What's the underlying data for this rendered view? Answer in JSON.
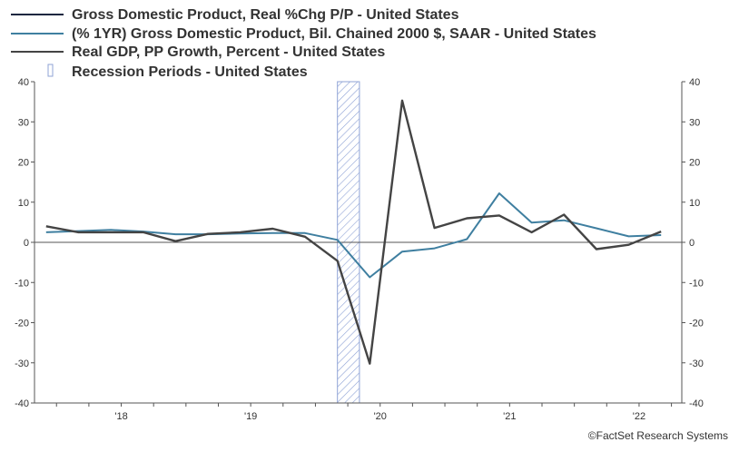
{
  "chart_data": {
    "type": "line",
    "title": "",
    "xlabel": "",
    "ylabel": "",
    "ylim": [
      -40,
      40
    ],
    "y_ticks": [
      "40",
      "30",
      "20",
      "10",
      "0",
      "-10",
      "-20",
      "-30",
      "-40"
    ],
    "y_tick_values": [
      40,
      30,
      20,
      10,
      0,
      -10,
      -20,
      -30,
      -40
    ],
    "x_tick_labels": [
      "'18",
      "'19",
      "'20",
      "'21",
      "'22"
    ],
    "x_tick_positions": [
      2018.0,
      2019.0,
      2020.0,
      2021.0,
      2022.0
    ],
    "xlim": [
      2017.33,
      2022.33
    ],
    "legend": [
      {
        "label": "Gross Domestic Product, Real %Chg P/P - United States",
        "color": "#1a2740",
        "kind": "line"
      },
      {
        "label": "(% 1YR) Gross Domestic Product, Bil. Chained 2000 $, SAAR - United States",
        "color": "#3f7fa0",
        "kind": "line"
      },
      {
        "label": "Real GDP, PP Growth, Percent - United States",
        "color": "#444444",
        "kind": "line"
      },
      {
        "label": "Recession Periods - United States",
        "color": "#8fa3d6",
        "kind": "hatch"
      }
    ],
    "recession": {
      "start": 2019.67,
      "end": 2019.84,
      "label": "Recession Periods - United States"
    },
    "series": [
      {
        "name": "(% 1YR) Gross Domestic Product, Bil. Chained 2000 $, SAAR - United States",
        "color": "#3f7fa0",
        "x": [
          2017.42,
          2017.67,
          2017.92,
          2018.17,
          2018.42,
          2018.67,
          2018.92,
          2019.17,
          2019.42,
          2019.67,
          2019.92,
          2020.17,
          2020.42,
          2020.67,
          2020.92,
          2021.17,
          2021.42,
          2021.67,
          2021.92,
          2022.17
        ],
        "values": [
          2.5,
          2.8,
          3.1,
          2.7,
          2.0,
          2.0,
          2.2,
          2.3,
          2.3,
          0.6,
          -8.7,
          -2.3,
          -1.5,
          0.8,
          12.2,
          4.9,
          5.5,
          3.5,
          1.5,
          1.8
        ]
      },
      {
        "name": "Real GDP, PP Growth, Percent - United States",
        "color": "#444444",
        "x": [
          2017.42,
          2017.67,
          2017.92,
          2018.17,
          2018.42,
          2018.67,
          2018.92,
          2019.17,
          2019.42,
          2019.67,
          2019.92,
          2020.17,
          2020.42,
          2020.67,
          2020.92,
          2021.17,
          2021.42,
          2021.67,
          2021.92,
          2022.17
        ],
        "values": [
          4.0,
          2.5,
          2.5,
          2.5,
          0.3,
          2.1,
          2.5,
          3.4,
          1.4,
          -4.6,
          -30.2,
          35.3,
          3.6,
          6.0,
          6.7,
          2.5,
          6.9,
          -1.7,
          -0.6,
          2.7
        ]
      }
    ]
  },
  "credit": "©FactSet Research Systems"
}
